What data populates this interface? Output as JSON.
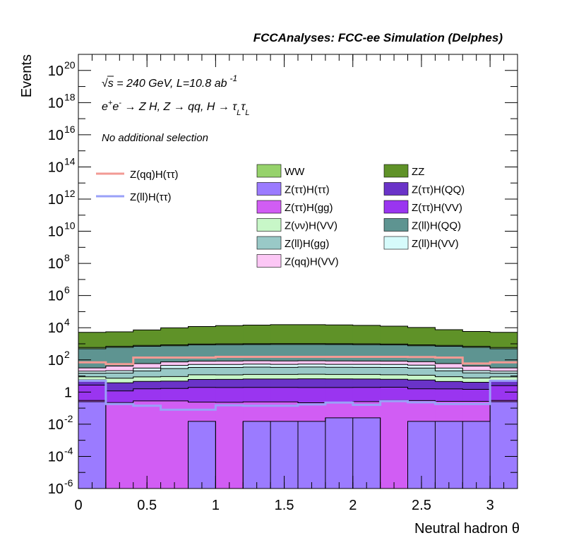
{
  "chart_data": {
    "type": "bar",
    "stacked": true,
    "title": "FCCAnalyses: FCC-ee Simulation (Delphes)",
    "xlabel": "Neutral hadron θ",
    "ylabel": "Events",
    "log_y": true,
    "xlim": [
      0,
      3.2
    ],
    "ylim": [
      1e-06,
      1e+21
    ],
    "x_ticks": [
      0,
      0.5,
      1,
      1.5,
      2,
      2.5,
      3
    ],
    "x_tick_labels": [
      "0",
      "0.5",
      "1",
      "1.5",
      "2",
      "2.5",
      "3"
    ],
    "y_tick_exponents": [
      -6,
      -4,
      -2,
      0,
      2,
      4,
      6,
      8,
      10,
      12,
      14,
      16,
      18,
      20
    ],
    "annotations": {
      "energy": "√s = 240 GeV, L=10.8 ab",
      "energy_sup": "-1",
      "process": "e⁺e⁻ → Z H, Z → qq, H → τ_L τ_L",
      "selection": "No additional selection"
    },
    "bin_edges": [
      0,
      0.2,
      0.4,
      0.6,
      0.8,
      1.0,
      1.2,
      1.4,
      1.6,
      1.8,
      2.0,
      2.2,
      2.4,
      2.6,
      2.8,
      3.0,
      3.2
    ],
    "stack_order_bottom_to_top": [
      "Z(ττ)H(ττ)",
      "Z(ττ)H(gg)",
      "Z(ττ)H(VV)",
      "Z(ττ)H(QQ)",
      "Z(νν)H(VV)",
      "Z(ll)H(gg)",
      "Z(ll)H(VV)",
      "Z(qq)H(VV)",
      "Z(ll)H(QQ)",
      "WW",
      "ZZ"
    ],
    "series": [
      {
        "name": "Z(ττ)H(ττ)",
        "color": "#9b7bff",
        "values": [
          0.25,
          1e-07,
          1e-07,
          1e-07,
          0.015,
          1e-07,
          0.015,
          0.015,
          0.015,
          0.025,
          0.025,
          1e-07,
          0.015,
          0.015,
          0.015,
          0.25
        ]
      },
      {
        "name": "Z(ττ)H(gg)",
        "color": "#d15df4",
        "values": [
          0.05,
          0.22,
          0.28,
          0.28,
          0.22,
          0.23,
          0.23,
          0.23,
          0.2,
          0.2,
          0.23,
          0.3,
          0.28,
          0.25,
          0.25,
          0.05
        ]
      },
      {
        "name": "Z(ττ)H(VV)",
        "color": "#9a35f0",
        "values": [
          2.4,
          0.95,
          1.3,
          1.4,
          1.7,
          1.7,
          1.7,
          1.7,
          1.7,
          1.7,
          1.7,
          1.7,
          1.3,
          1.3,
          1.2,
          2.2
        ]
      },
      {
        "name": "Z(ττ)H(QQ)",
        "color": "#6a33c8",
        "values": [
          3,
          2.6,
          3,
          3.1,
          4.1,
          4.2,
          4.5,
          4.5,
          4.7,
          4.6,
          4.5,
          4.2,
          4,
          3,
          2.6,
          3
        ]
      },
      {
        "name": "Z(νν)H(VV)",
        "color": "#c8f7c8",
        "values": [
          3.2,
          3.5,
          4.2,
          4.4,
          5.8,
          5.6,
          6,
          6,
          6.2,
          6,
          6,
          5.6,
          5.5,
          4.4,
          3.5,
          3.3
        ]
      },
      {
        "name": "Z(ll)H(gg)",
        "color": "#99c9c7",
        "values": [
          6,
          8,
          12,
          20,
          22,
          22,
          23,
          22,
          23,
          22,
          22,
          22,
          20,
          12,
          8,
          6
        ]
      },
      {
        "name": "Z(ll)H(VV)",
        "color": "#d6fbfb",
        "values": [
          5,
          6,
          10,
          16,
          18,
          18,
          19,
          18,
          19,
          18,
          18,
          18,
          16,
          10,
          6,
          5
        ]
      },
      {
        "name": "Z(qq)H(VV)",
        "color": "#fcc7f5",
        "values": [
          12,
          20,
          28,
          30,
          32,
          33,
          34,
          34,
          34,
          34,
          33,
          32,
          30,
          28,
          20,
          12
        ]
      },
      {
        "name": "Z(ll)H(QQ)",
        "color": "#5e9491",
        "values": [
          460,
          560,
          640,
          680,
          780,
          800,
          820,
          830,
          830,
          820,
          800,
          780,
          680,
          640,
          560,
          460
        ]
      },
      {
        "name": "WW",
        "color": "#96d26b",
        "values": [
          100,
          90,
          100,
          100,
          110,
          110,
          110,
          110,
          110,
          110,
          110,
          110,
          100,
          100,
          90,
          100
        ]
      },
      {
        "name": "ZZ",
        "color": "#5f9228",
        "values": [
          4600,
          4900,
          6500,
          9000,
          11000,
          12500,
          13500,
          14500,
          14500,
          14000,
          13000,
          11500,
          9500,
          6800,
          5200,
          4600
        ]
      }
    ],
    "overlays": [
      {
        "name": "Z(qq)H(ττ)",
        "color": "#f29a94",
        "values": [
          70,
          55,
          140,
          140,
          140,
          155,
          155,
          155,
          155,
          155,
          155,
          155,
          150,
          140,
          60,
          70
        ]
      },
      {
        "name": "Z(ll)H(ττ)",
        "color": "#9aa0f8",
        "values": [
          5,
          0.18,
          0.14,
          0.08,
          0.08,
          0.15,
          0.14,
          0.14,
          0.17,
          0.22,
          0.16,
          0.27,
          0.23,
          0.18,
          0.18,
          5
        ]
      }
    ],
    "legend_left": [
      "Z(qq)H(ττ)",
      "Z(ll)H(ττ)"
    ],
    "legend_grid": [
      [
        "WW",
        "ZZ"
      ],
      [
        "Z(ττ)H(ττ)",
        "Z(ττ)H(QQ)"
      ],
      [
        "Z(ττ)H(gg)",
        "Z(ττ)H(VV)"
      ],
      [
        "Z(νν)H(VV)",
        "Z(ll)H(QQ)"
      ],
      [
        "Z(ll)H(gg)",
        "Z(ll)H(VV)"
      ],
      [
        "Z(qq)H(VV)",
        ""
      ]
    ],
    "legend_placement": "top-right"
  }
}
